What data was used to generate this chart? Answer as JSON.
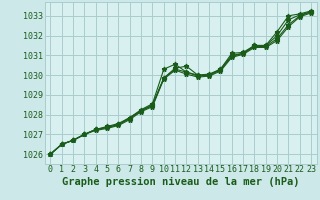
{
  "title": "Graphe pression niveau de la mer (hPa)",
  "bg_color": "#cce8e8",
  "plot_bg_color": "#d8f0f0",
  "grid_color": "#aacccc",
  "line_color": "#1a5c1a",
  "marker_color": "#1a5c1a",
  "xlim": [
    -0.5,
    23.5
  ],
  "ylim": [
    1025.5,
    1033.7
  ],
  "yticks": [
    1026,
    1027,
    1028,
    1029,
    1030,
    1031,
    1032,
    1033
  ],
  "xticks": [
    0,
    1,
    2,
    3,
    4,
    5,
    6,
    7,
    8,
    9,
    10,
    11,
    12,
    13,
    14,
    15,
    16,
    17,
    18,
    19,
    20,
    21,
    22,
    23
  ],
  "series": [
    [
      1026.0,
      1026.5,
      1026.7,
      1027.0,
      1027.25,
      1027.4,
      1027.55,
      1027.85,
      1028.25,
      1028.55,
      1030.3,
      1030.55,
      1030.15,
      1030.0,
      1030.05,
      1030.3,
      1031.1,
      1031.15,
      1031.5,
      1031.5,
      1032.2,
      1033.0,
      1033.1,
      1033.25
    ],
    [
      1026.0,
      1026.5,
      1026.7,
      1027.0,
      1027.25,
      1027.35,
      1027.5,
      1027.85,
      1028.2,
      1028.5,
      1029.85,
      1030.35,
      1030.45,
      1030.0,
      1030.0,
      1030.3,
      1031.0,
      1031.1,
      1031.5,
      1031.5,
      1032.0,
      1032.8,
      1033.05,
      1033.2
    ],
    [
      1026.0,
      1026.5,
      1026.7,
      1027.0,
      1027.25,
      1027.35,
      1027.5,
      1027.8,
      1028.2,
      1028.45,
      1029.85,
      1030.3,
      1030.15,
      1029.95,
      1030.0,
      1030.25,
      1030.95,
      1031.1,
      1031.45,
      1031.45,
      1031.85,
      1032.55,
      1033.0,
      1033.2
    ],
    [
      1026.0,
      1026.5,
      1026.7,
      1027.0,
      1027.2,
      1027.3,
      1027.45,
      1027.75,
      1028.15,
      1028.4,
      1029.8,
      1030.25,
      1030.05,
      1029.9,
      1029.95,
      1030.2,
      1030.9,
      1031.05,
      1031.4,
      1031.4,
      1031.75,
      1032.45,
      1032.95,
      1033.15
    ]
  ],
  "title_fontsize": 7.5,
  "tick_fontsize": 6.0
}
